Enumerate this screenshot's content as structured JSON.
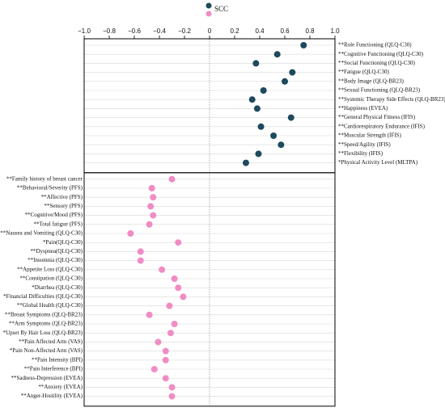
{
  "chart_data": {
    "type": "dot",
    "xlim": [
      -1.0,
      1.0
    ],
    "xticks": [
      {
        "value": -1.0,
        "label": "−1.0"
      },
      {
        "value": -0.8,
        "label": "−0.8"
      },
      {
        "value": -0.6,
        "label": "−0.6"
      },
      {
        "value": -0.4,
        "label": "−0.4"
      },
      {
        "value": -0.2,
        "label": "−0.2"
      },
      0,
      0.2,
      0.4,
      0.6,
      0.8,
      {
        "value": 1.0,
        "label": "1.0"
      }
    ],
    "series": [
      {
        "name": "SCC",
        "color": "#1d4a5c",
        "categories": [
          "**Role Functioning (QLQ-C30)",
          "**Cognitive Functioning (QLQ-C30)",
          "**Social Functioning (QLQ-C30)",
          "**Fatigue (QLQ-C30)",
          "**Body Image (QLQ-BR23)",
          "**Sexual Functioning (QLQ-BR23)",
          "**Systemic Therapy Side Effects (QLQ-BR23)",
          "**Happiness (EVEA)",
          "**General Physical Fitness (IFIS)",
          "**Cardiorespiratory Endurance (IFIS)",
          "**Muscular Strength (IFIS)",
          "**Speed/Agility (IFIS)",
          "**Flexibility (IFIS)",
          "*Physical Activity Level (MLTPA)"
        ],
        "values": [
          0.75,
          0.54,
          0.37,
          0.66,
          0.6,
          0.43,
          0.34,
          0.38,
          0.65,
          0.41,
          0.51,
          0.57,
          0.39,
          0.29
        ]
      },
      {
        "color": "#f08cc4",
        "categories": [
          "**Family history of breast cancer",
          "**Behavioral/Severity (PFS)",
          "**Affective (PFS)",
          "**Sensory (PFS)",
          "**Cognitive/Mood (PFS)",
          "**Total fatigue (PFS)",
          "**Nausea and Vomiting (QLQ-C30)",
          "*Pain(QLQ-C30)",
          "**Dyspnea(QLQ-C30)",
          "**Insomnia (QLQ-C30)",
          "**Appetite Loss (QLQ-C30)",
          "**Constipation (QLQ-C30)",
          "*Diarrhea (QLQ-C30)",
          "*Financial Difficulties (QLQ-C30)",
          "**Global Health (QLQ-C30)",
          "**Breast Symptoms (QLQ-BR23)",
          "**Arm Symptoms (QLQ-BR23)",
          "*Upset By Hair Loss (QLQ-BR23)",
          "**Pain Affected Arm (VAS)",
          "*Pain Non-Affected Arm (VAS)",
          "**Pain Intensity (BPI)",
          "**Pain Interference (BPI)",
          "**Sadness-Depression (EVEA)",
          "**Anxiety (EVEA)",
          "**Anger-Hostility (EVEA)"
        ],
        "values": [
          -0.3,
          -0.46,
          -0.45,
          -0.47,
          -0.45,
          -0.48,
          -0.63,
          -0.25,
          -0.55,
          -0.55,
          -0.38,
          -0.28,
          -0.25,
          -0.21,
          -0.32,
          -0.48,
          -0.28,
          -0.31,
          -0.41,
          -0.35,
          -0.35,
          -0.44,
          -0.35,
          -0.3,
          -0.3
        ]
      }
    ]
  }
}
